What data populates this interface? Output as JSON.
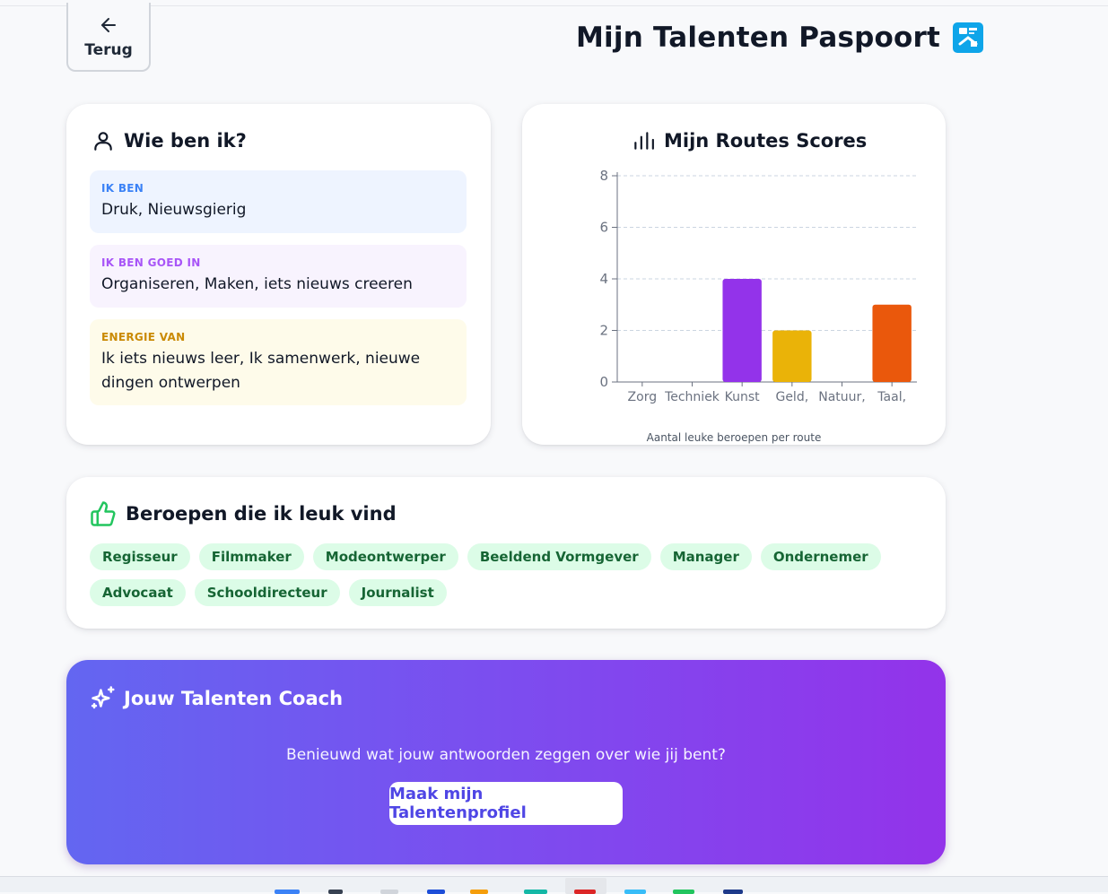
{
  "header": {
    "back_label": "Terug",
    "title": "Mijn Talenten Paspoort",
    "back_icon": "arrow-left-icon",
    "title_icon": "passport-icon"
  },
  "who": {
    "title": "Wie ben ik?",
    "icon": "user-icon",
    "boxes": [
      {
        "tag": "IK BEN",
        "value": "Druk, Nieuwsgierig",
        "color": "#3b82f6"
      },
      {
        "tag": "IK BEN GOED IN",
        "value": "Organiseren, Maken, iets nieuws creeren",
        "color": "#a855f7"
      },
      {
        "tag": "ENERGIE VAN",
        "value": "Ik iets nieuws leer, Ik samenwerk, nieuwe dingen ontwerpen",
        "color": "#ca8a04"
      }
    ]
  },
  "chart": {
    "title": "Mijn Routes Scores",
    "icon": "bar-chart-icon"
  },
  "chart_data": {
    "type": "bar",
    "categories": [
      "Zorg",
      "Techniek",
      "Kunst",
      "Geld,",
      "Natuur,",
      "Taal,"
    ],
    "values": [
      0,
      0,
      4,
      2,
      0,
      3
    ],
    "colors": [
      "#9333ea",
      "#9333ea",
      "#9333ea",
      "#eab308",
      "#16a34a",
      "#ea580c"
    ],
    "ylim": [
      0,
      8
    ],
    "yticks": [
      0,
      2,
      4,
      6,
      8
    ],
    "grid": true,
    "title": "",
    "xlabel": "Aantal leuke beroepen per route",
    "ylabel": ""
  },
  "jobs": {
    "title": "Beroepen die ik leuk vind",
    "icon": "thumbs-up-icon",
    "items": [
      "Regisseur",
      "Filmmaker",
      "Modeontwerper",
      "Beeldend Vormgever",
      "Manager",
      "Ondernemer",
      "Advocaat",
      "Schooldirecteur",
      "Journalist"
    ]
  },
  "coach": {
    "title": "Jouw Talenten Coach",
    "icon": "sparkles-icon",
    "text": "Benieuwd wat jouw antwoorden zeggen over wie jij bent?",
    "button": "Maak mijn Talentenprofiel"
  },
  "colors": {
    "accent": "#4f46e5",
    "pill_bg": "#dcfce7",
    "pill_text": "#166534"
  }
}
